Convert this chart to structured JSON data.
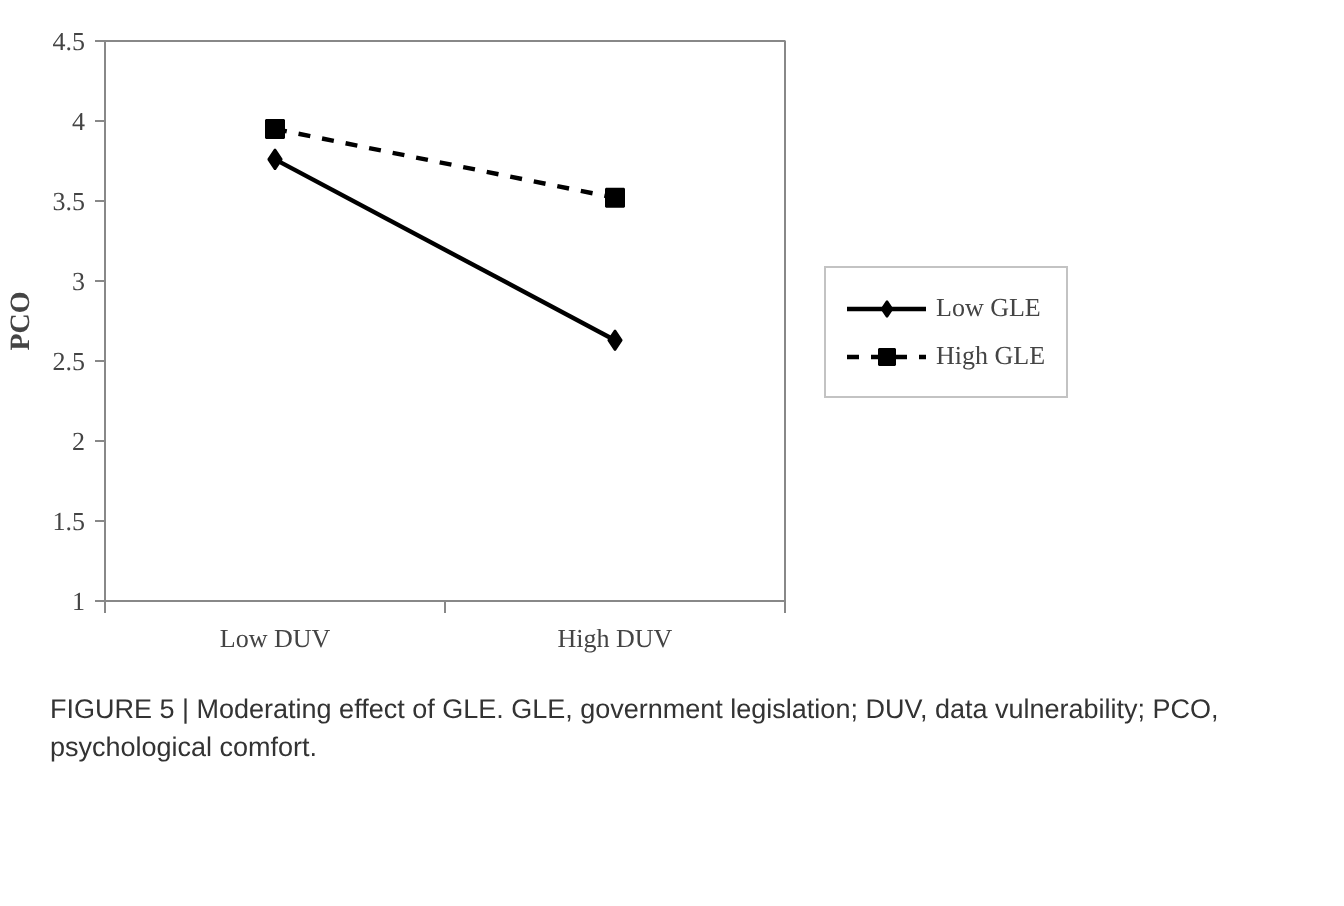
{
  "chart_data": {
    "type": "line",
    "ylabel": "PCO",
    "categories": [
      "Low DUV",
      "High DUV"
    ],
    "series": [
      {
        "name": "Low GLE",
        "color": "#000000",
        "values": [
          3.76,
          2.63
        ],
        "marker": "diamond",
        "line_style": "solid"
      },
      {
        "name": "High GLE",
        "color": "#000000",
        "values": [
          3.95,
          3.52
        ],
        "marker": "square",
        "line_style": "dashed"
      }
    ],
    "ylim": [
      1,
      4.5
    ],
    "yticks": [
      1,
      1.5,
      2,
      2.5,
      3,
      3.5,
      4,
      4.5
    ],
    "grid": false,
    "legend": "right",
    "annotations": [
      "FIGURE 5 | Moderating effect of GLE. GLE, government legislation; DUV, data vulnerability; PCO, psychological comfort."
    ]
  }
}
